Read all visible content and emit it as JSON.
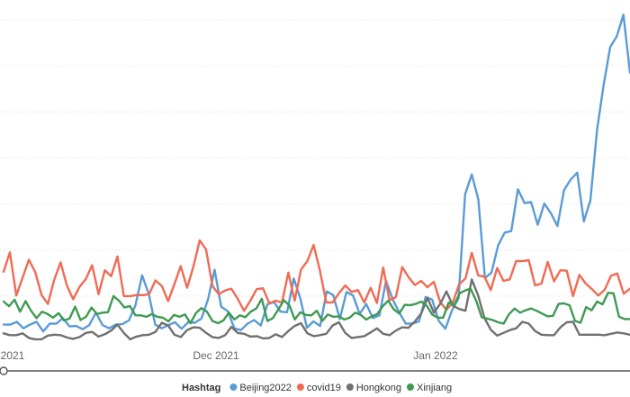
{
  "chart_data": {
    "type": "line",
    "xlabel": "",
    "ylabel": "",
    "x_tick_labels": [
      "2021",
      "Dec 2021",
      "Jan 2022"
    ],
    "grid": true,
    "legend": {
      "title": "Hashtag",
      "placement": "bottom-center",
      "items": [
        "Beijing2022",
        "covid19",
        "Hongkong",
        "Xinjiang"
      ]
    },
    "colors": {
      "Beijing2022": "#5B9BD5",
      "covid19": "#F16A54",
      "Hongkong": "#707070",
      "Xinjiang": "#3E9A52"
    },
    "series": [
      {
        "name": "Beijing2022",
        "values": [
          3.8,
          3.8,
          4.4,
          3.0,
          3.8,
          4.4,
          2.3,
          4.0,
          4.0,
          5.2,
          3.4,
          3.5,
          2.8,
          3.7,
          6.4,
          3.7,
          3.0,
          3.8,
          3.9,
          4.7,
          8.0,
          14.5,
          10.5,
          3.8,
          3.0,
          3.7,
          4.3,
          2.9,
          4.3,
          4.2,
          5.1,
          9.2,
          15.7,
          7.7,
          6.7,
          3.0,
          2.6,
          4.0,
          4.8,
          3.6,
          8.2,
          8.7,
          6.6,
          6.5,
          13.8,
          9.5,
          3.1,
          4.5,
          3.5,
          11.0,
          10.2,
          5.0,
          10.9,
          10.1,
          6.1,
          8.3,
          5.2,
          5.8,
          13.3,
          9.3,
          6.4,
          4.0,
          4.0,
          4.5,
          9.8,
          9.2,
          4.6,
          2.9,
          6.9,
          9.5,
          32.1,
          36.4,
          31.0,
          13.9,
          15.1,
          21.0,
          23.8,
          24.1,
          33.2,
          30.2,
          30.4,
          25.5,
          30.1,
          28.0,
          25.2,
          33.0,
          35.3,
          36.8,
          26.2,
          30.8,
          46.1,
          55.8,
          64.1,
          66.4,
          71.1,
          58.5
        ]
      },
      {
        "name": "covid19",
        "values": [
          15.3,
          19.5,
          10.1,
          14.0,
          17.9,
          15.2,
          10.2,
          8.3,
          13.5,
          17.3,
          12.3,
          9.3,
          12.0,
          13.7,
          16.7,
          10.4,
          15.6,
          14.3,
          18.6,
          10.0,
          10.0,
          10.2,
          10.2,
          10.4,
          13.4,
          12.2,
          8.9,
          12.6,
          16.5,
          11.8,
          16.4,
          22.1,
          20.1,
          12.2,
          10.4,
          11.2,
          11.6,
          9.4,
          6.8,
          9.0,
          11.5,
          11.7,
          8.4,
          9.0,
          8.6,
          15.1,
          9.0,
          15.7,
          17.6,
          21.1,
          15.5,
          8.6,
          8.6,
          10.6,
          12.3,
          10.9,
          11.3,
          8.6,
          11.8,
          8.5,
          16.2,
          9.1,
          9.8,
          16.3,
          14.1,
          12.4,
          13.3,
          11.9,
          13.1,
          8.7,
          7.0,
          8.6,
          12.6,
          13.8,
          19.4,
          14.5,
          14.2,
          11.3,
          16.1,
          13.3,
          13.6,
          17.6,
          17.6,
          17.8,
          12.3,
          12.7,
          17.4,
          13.2,
          15.6,
          15.5,
          10.0,
          14.6,
          12.7,
          11.5,
          10.1,
          11.4,
          14.4,
          14.9,
          10.5,
          11.6
        ]
      },
      {
        "name": "Hongkong",
        "values": [
          1.9,
          1.5,
          1.5,
          1.9,
          0.9,
          0.6,
          0.6,
          1.4,
          1.6,
          1.5,
          1.0,
          0.7,
          1.1,
          2.0,
          2.2,
          1.2,
          1.7,
          2.5,
          3.8,
          2.0,
          0.6,
          1.2,
          1.5,
          1.6,
          2.2,
          4.2,
          3.6,
          1.6,
          1.1,
          2.6,
          3.2,
          3.1,
          2.0,
          1.1,
          0.9,
          1.5,
          3.3,
          2.0,
          1.8,
          1.2,
          1.3,
          0.8,
          0.9,
          1.7,
          1.1,
          2.4,
          3.5,
          4.1,
          1.9,
          1.3,
          1.5,
          1.8,
          3.6,
          4.3,
          2.0,
          0.9,
          1.1,
          1.3,
          2.1,
          3.0,
          1.8,
          1.5,
          2.5,
          3.2,
          3.1,
          4.5,
          6.2,
          9.6,
          6.4,
          8.3,
          11.0,
          7.9,
          7.2,
          6.8,
          13.6,
          10.1,
          5.2,
          2.7,
          1.4,
          2.0,
          2.6,
          3.0,
          4.4,
          4.0,
          2.4,
          1.6,
          1.5,
          1.5,
          3.2,
          4.3,
          4.4,
          1.6,
          1.6,
          1.6,
          1.6,
          1.5,
          1.8,
          2.1,
          1.9,
          1.6
        ]
      },
      {
        "name": "Xinjiang",
        "values": [
          8.8,
          7.8,
          9.2,
          6.6,
          8.9,
          6.8,
          5.2,
          6.6,
          6.1,
          5.3,
          6.3,
          4.7,
          5.1,
          7.7,
          4.8,
          5.5,
          7.5,
          6.1,
          6.4,
          6.5,
          10.0,
          9.0,
          7.5,
          7.8,
          5.8,
          5.8,
          5.5,
          6.1,
          5.5,
          5.3,
          4.5,
          5.9,
          5.5,
          6.0,
          4.1,
          6.3,
          7.4,
          6.6,
          4.6,
          4.1,
          4.7,
          6.4,
          4.9,
          5.8,
          5.4,
          6.6,
          7.3,
          9.4,
          4.6,
          5.2,
          7.1,
          9.1,
          8.0,
          4.9,
          6.5,
          5.9,
          5.8,
          6.8,
          4.6,
          6.0,
          5.5,
          5.6,
          4.9,
          5.3,
          6.4,
          5.9,
          4.9,
          5.6,
          6.1,
          7.8,
          9.0,
          7.1,
          6.2,
          8.1,
          8.0,
          8.3,
          8.8,
          7.9,
          6.0,
          5.3,
          5.3,
          8.6,
          8.0,
          10.6,
          11.2,
          11.6,
          9.0,
          5.4,
          5.1,
          4.8,
          4.3,
          4.0,
          6.1,
          7.3,
          6.4,
          6.9,
          7.3,
          6.8,
          6.2,
          5.6,
          5.7,
          8.3,
          8.4,
          8.0,
          4.6,
          4.2,
          7.6,
          6.9,
          8.8,
          8.2,
          10.7,
          10.6,
          5.5,
          5.0,
          5.0
        ]
      }
    ]
  }
}
